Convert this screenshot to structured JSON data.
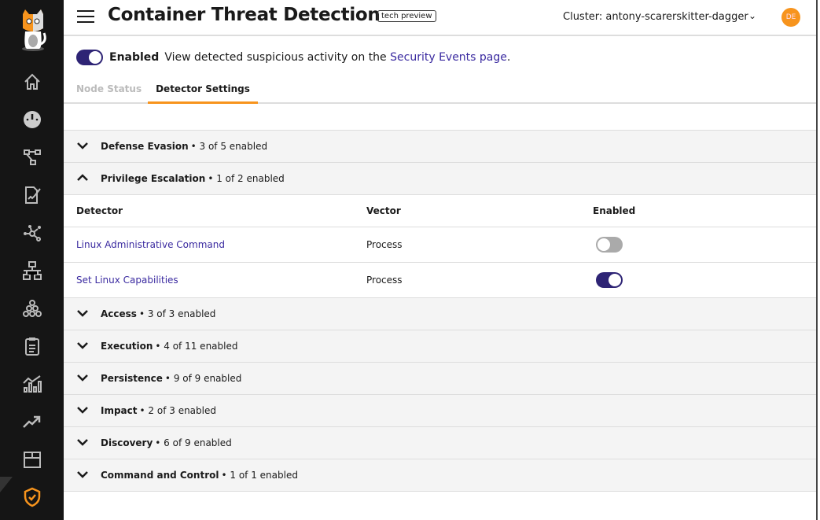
{
  "header": {
    "title": "Container Threat Detection",
    "badge": "tech preview",
    "cluster": "Cluster: antony-scarerskitter-dagger",
    "avatar": "DE"
  },
  "status": {
    "enabled_label": "Enabled",
    "text": "View detected suspicious activity on the",
    "link": "Security Events page",
    "period": ".",
    "enabled": true
  },
  "tabs": [
    {
      "label": "Node Status",
      "active": false
    },
    {
      "label": "Detector Settings",
      "active": true
    }
  ],
  "sidebar": {
    "icons": [
      "home-icon",
      "dashboard-icon",
      "topology-icon",
      "policy-icon",
      "network-icon",
      "hierarchy-icon",
      "cluster-icon",
      "checklist-icon",
      "analytics-icon",
      "trend-icon",
      "package-icon",
      "shield-check-icon"
    ],
    "active": "shield-check-icon"
  },
  "sections": [
    {
      "name": "Defense Evasion",
      "count": "• 3 of 5 enabled",
      "expanded": false
    },
    {
      "name": "Privilege Escalation",
      "count": "• 1 of 2 enabled",
      "expanded": true
    },
    {
      "name": "Access",
      "count": "• 3 of 3 enabled",
      "expanded": false
    },
    {
      "name": "Execution",
      "count": "• 4 of 11 enabled",
      "expanded": false
    },
    {
      "name": "Persistence",
      "count": "• 9 of 9 enabled",
      "expanded": false
    },
    {
      "name": "Impact",
      "count": "• 2 of 3 enabled",
      "expanded": false
    },
    {
      "name": "Discovery",
      "count": "• 6 of 9 enabled",
      "expanded": false
    },
    {
      "name": "Command and Control",
      "count": "• 1 of 1 enabled",
      "expanded": false
    }
  ],
  "table": {
    "headers": [
      "Detector",
      "Vector",
      "Enabled"
    ],
    "rows": [
      {
        "detector": "Linux Administrative Command",
        "vector": "Process",
        "enabled": false
      },
      {
        "detector": "Set Linux Capabilities",
        "vector": "Process",
        "enabled": true
      }
    ]
  },
  "colors": {
    "accent": "#f7941d",
    "primary": "#2e2475",
    "sidebar": "#151515"
  }
}
